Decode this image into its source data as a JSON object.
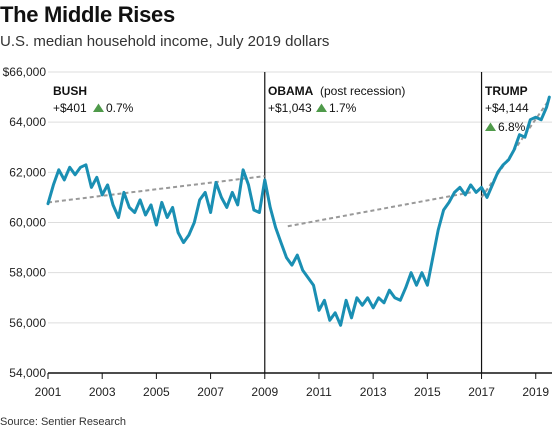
{
  "header": {
    "title": "The Middle Rises",
    "subtitle": "U.S. median household income, July 2019 dollars",
    "source": "Source: Sentier Research"
  },
  "colors": {
    "line": "#1a8fb3",
    "trend": "#999999",
    "up": "#4f9a4a",
    "axis": "#111111",
    "grid": "#dddddd"
  },
  "periods": [
    {
      "name": "BUSH",
      "note": "",
      "change": "+$401",
      "pct": "0.7%"
    },
    {
      "name": "OBAMA",
      "note": "(post recession)",
      "change": "+$1,043",
      "pct": "1.7%"
    },
    {
      "name": "TRUMP",
      "note": "",
      "change": "+$4,144",
      "pct": "6.8%"
    }
  ],
  "chart_data": {
    "type": "line",
    "title": "The Middle Rises",
    "subtitle": "U.S. median household income, July 2019 dollars",
    "xlim": [
      2001,
      2019.6
    ],
    "ylim": [
      54000,
      66000
    ],
    "x_ticks": [
      "2001",
      "2003",
      "2005",
      "2007",
      "2009",
      "2011",
      "2013",
      "2015",
      "2017",
      "2019"
    ],
    "y_ticks": [
      "$66,000",
      "64,000",
      "62,000",
      "60,000",
      "58,000",
      "56,000",
      "54,000"
    ],
    "x_tick_values": [
      2001,
      2003,
      2005,
      2007,
      2009,
      2011,
      2013,
      2015,
      2017,
      2019
    ],
    "y_tick_values": [
      66000,
      64000,
      62000,
      60000,
      58000,
      56000,
      54000
    ],
    "grid": true,
    "period_dividers": [
      2009,
      2017
    ],
    "series": [
      {
        "values": [
          [
            2001.0,
            60750
          ],
          [
            2001.2,
            61500
          ],
          [
            2001.4,
            62100
          ],
          [
            2001.6,
            61700
          ],
          [
            2001.8,
            62200
          ],
          [
            2002.0,
            61900
          ],
          [
            2002.2,
            62200
          ],
          [
            2002.4,
            62300
          ],
          [
            2002.6,
            61400
          ],
          [
            2002.8,
            61800
          ],
          [
            2003.0,
            61100
          ],
          [
            2003.2,
            61500
          ],
          [
            2003.4,
            60700
          ],
          [
            2003.6,
            60200
          ],
          [
            2003.8,
            61200
          ],
          [
            2004.0,
            60600
          ],
          [
            2004.2,
            60400
          ],
          [
            2004.4,
            60900
          ],
          [
            2004.6,
            60300
          ],
          [
            2004.8,
            60700
          ],
          [
            2005.0,
            59900
          ],
          [
            2005.2,
            60800
          ],
          [
            2005.4,
            60200
          ],
          [
            2005.6,
            60600
          ],
          [
            2005.8,
            59600
          ],
          [
            2006.0,
            59200
          ],
          [
            2006.2,
            59500
          ],
          [
            2006.4,
            60000
          ],
          [
            2006.6,
            60900
          ],
          [
            2006.8,
            61200
          ],
          [
            2007.0,
            60400
          ],
          [
            2007.2,
            61600
          ],
          [
            2007.4,
            61000
          ],
          [
            2007.6,
            60600
          ],
          [
            2007.8,
            61200
          ],
          [
            2008.0,
            60700
          ],
          [
            2008.2,
            62100
          ],
          [
            2008.4,
            61500
          ],
          [
            2008.6,
            60500
          ],
          [
            2008.8,
            60400
          ],
          [
            2009.0,
            61700
          ],
          [
            2009.2,
            60600
          ],
          [
            2009.4,
            59800
          ],
          [
            2009.6,
            59200
          ],
          [
            2009.8,
            58600
          ],
          [
            2010.0,
            58300
          ],
          [
            2010.2,
            58700
          ],
          [
            2010.4,
            58100
          ],
          [
            2010.6,
            57800
          ],
          [
            2010.8,
            57500
          ],
          [
            2011.0,
            56500
          ],
          [
            2011.2,
            56900
          ],
          [
            2011.4,
            56100
          ],
          [
            2011.6,
            56400
          ],
          [
            2011.8,
            55900
          ],
          [
            2012.0,
            56900
          ],
          [
            2012.2,
            56200
          ],
          [
            2012.4,
            57000
          ],
          [
            2012.6,
            56700
          ],
          [
            2012.8,
            57000
          ],
          [
            2013.0,
            56600
          ],
          [
            2013.2,
            57000
          ],
          [
            2013.4,
            56800
          ],
          [
            2013.6,
            57300
          ],
          [
            2013.8,
            57000
          ],
          [
            2014.0,
            56900
          ],
          [
            2014.2,
            57400
          ],
          [
            2014.4,
            58000
          ],
          [
            2014.6,
            57500
          ],
          [
            2014.8,
            58000
          ],
          [
            2015.0,
            57500
          ],
          [
            2015.2,
            58600
          ],
          [
            2015.4,
            59700
          ],
          [
            2015.6,
            60500
          ],
          [
            2015.8,
            60800
          ],
          [
            2016.0,
            61200
          ],
          [
            2016.2,
            61400
          ],
          [
            2016.4,
            61100
          ],
          [
            2016.6,
            61500
          ],
          [
            2016.8,
            61200
          ],
          [
            2017.0,
            61400
          ],
          [
            2017.2,
            61000
          ],
          [
            2017.4,
            61500
          ],
          [
            2017.6,
            62000
          ],
          [
            2017.8,
            62300
          ],
          [
            2018.0,
            62500
          ],
          [
            2018.2,
            62900
          ],
          [
            2018.4,
            63500
          ],
          [
            2018.6,
            63400
          ],
          [
            2018.8,
            64100
          ],
          [
            2019.0,
            64200
          ],
          [
            2019.2,
            64100
          ],
          [
            2019.4,
            64600
          ],
          [
            2019.5,
            65000
          ]
        ]
      }
    ],
    "trend_lines": [
      {
        "from": [
          2001,
          60800
        ],
        "to": [
          2009,
          61850
        ]
      },
      {
        "from": [
          2009.85,
          59850
        ],
        "to": [
          2016.6,
          61200
        ]
      },
      {
        "from": [
          2017,
          61000
        ],
        "to": [
          2019.5,
          64900
        ]
      }
    ]
  }
}
